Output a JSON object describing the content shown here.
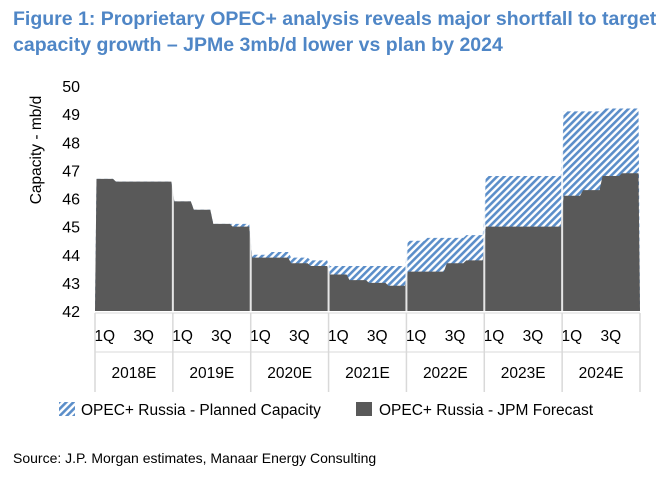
{
  "figure": {
    "title_line1": "Figure 1: Proprietary OPEC+ analysis reveals major shortfall to target",
    "title_line2": "capacity growth – JPMe 3mb/d lower vs plan by 2024",
    "source": "Source: J.P. Morgan estimates, Manaar Energy Consulting"
  },
  "colors": {
    "title": "#4f86c6",
    "forecast_fill": "#595959",
    "planned_stripe": "#5b8ec9",
    "divider": "#d9d9d9"
  },
  "chart_data": {
    "type": "area",
    "ylabel": "Capacity - mb/d",
    "ylim": [
      42,
      50
    ],
    "yticks": [
      42,
      43,
      44,
      45,
      46,
      47,
      48,
      49,
      50
    ],
    "grid": false,
    "legend_position": "bottom",
    "quarter_labels": [
      "1Q",
      "3Q"
    ],
    "years": [
      "2018E",
      "2019E",
      "2020E",
      "2021E",
      "2022E",
      "2023E",
      "2024E"
    ],
    "x": [
      "1Q18",
      "2Q18",
      "3Q18",
      "4Q18",
      "1Q19",
      "2Q19",
      "3Q19",
      "4Q19",
      "1Q20",
      "2Q20",
      "3Q20",
      "4Q20",
      "1Q21",
      "2Q21",
      "3Q21",
      "4Q21",
      "1Q22",
      "2Q22",
      "3Q22",
      "4Q22",
      "1Q23",
      "2Q23",
      "3Q23",
      "4Q23",
      "1Q24",
      "2Q24",
      "3Q24",
      "4Q24"
    ],
    "series": [
      {
        "name": "OPEC+ Russia - Planned Capacity",
        "style": "striped",
        "values": [
          46.7,
          46.6,
          46.6,
          46.6,
          45.9,
          45.6,
          45.1,
          45.1,
          44.0,
          44.1,
          43.9,
          43.8,
          43.6,
          43.6,
          43.6,
          43.6,
          44.5,
          44.6,
          44.6,
          44.7,
          46.8,
          46.8,
          46.8,
          46.8,
          49.1,
          49.1,
          49.2,
          49.2
        ]
      },
      {
        "name": "OPEC+ Russia - JPM Forecast",
        "style": "solid",
        "values": [
          46.7,
          46.6,
          46.6,
          46.6,
          45.9,
          45.6,
          45.1,
          45.0,
          43.9,
          43.9,
          43.7,
          43.6,
          43.3,
          43.1,
          43.0,
          42.9,
          43.4,
          43.4,
          43.7,
          43.8,
          45.0,
          45.0,
          45.0,
          45.0,
          46.1,
          46.3,
          46.8,
          46.9
        ]
      }
    ]
  }
}
